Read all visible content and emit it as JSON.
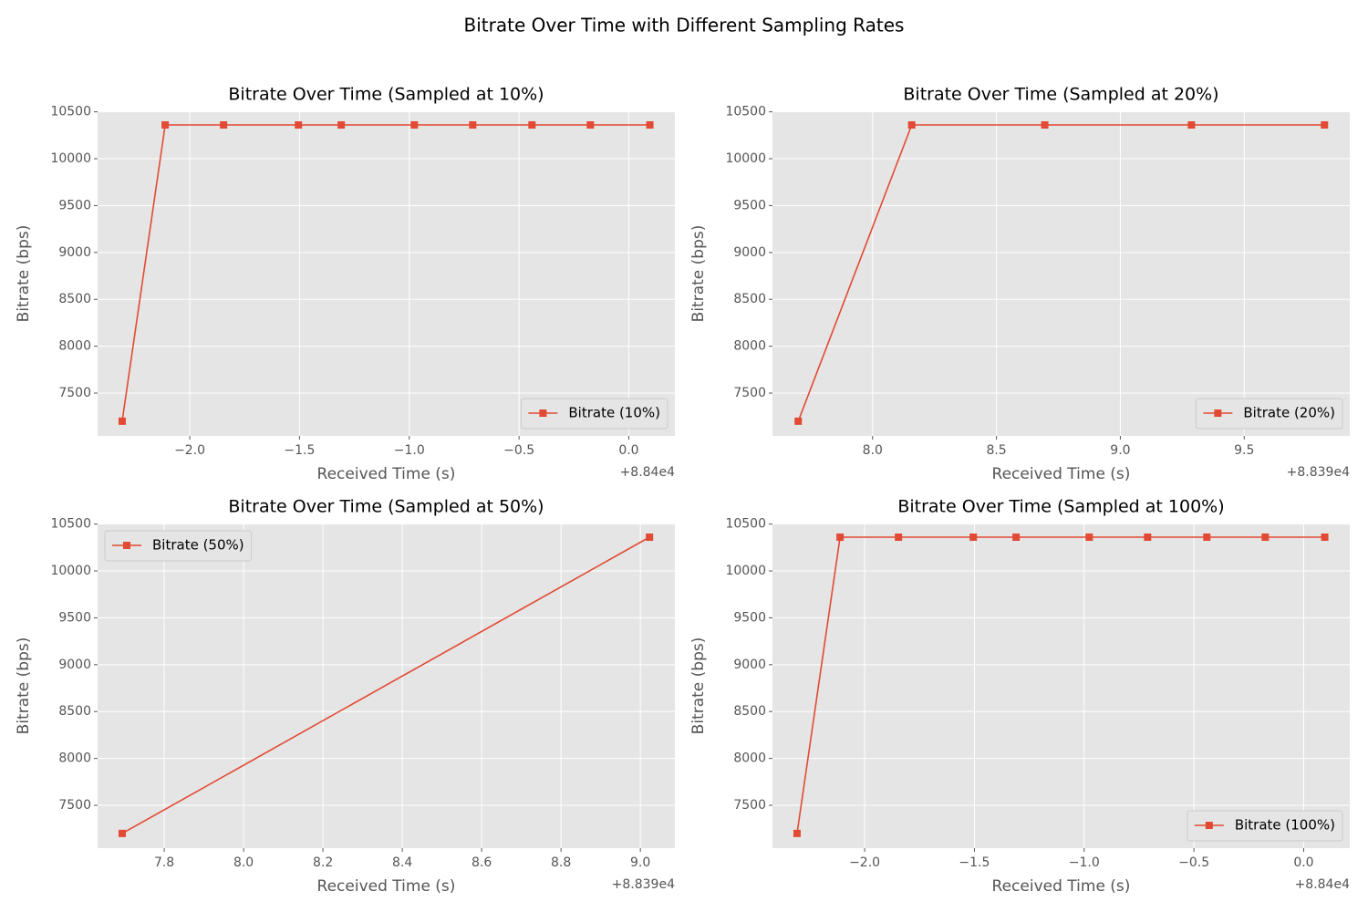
{
  "title": "Bitrate Over Time with Different Sampling Rates",
  "chart_data": [
    {
      "type": "line",
      "title": "Bitrate Over Time (Sampled at 10%)",
      "xlabel": "Received Time (s)",
      "ylabel": "Bitrate (bps)",
      "x_offset_label": "+8.84e4",
      "x": [
        -2.308,
        -2.112,
        -1.846,
        -1.505,
        -1.31,
        -0.977,
        -0.711,
        -0.441,
        -0.175,
        0.096
      ],
      "series": [
        {
          "name": "Bitrate (10%)",
          "color": "#E24A33",
          "values": [
            7200,
            10360,
            10360,
            10360,
            10360,
            10360,
            10360,
            10360,
            10360,
            10360
          ]
        }
      ],
      "xlim": [
        -2.42,
        0.21
      ],
      "ylim": [
        7043,
        10506
      ],
      "xticks": [
        {
          "value": -2.0,
          "label": "−2.0"
        },
        {
          "value": -1.5,
          "label": "−1.5"
        },
        {
          "value": -1.0,
          "label": "−1.0"
        },
        {
          "value": -0.5,
          "label": "−0.5"
        },
        {
          "value": 0,
          "label": "0.0"
        }
      ],
      "yticks": [
        7500,
        8000,
        8500,
        9000,
        9500,
        10000,
        10500
      ],
      "grid": true,
      "legend": "lower right",
      "marker": "square"
    },
    {
      "type": "line",
      "title": "Bitrate Over Time (Sampled at 20%)",
      "xlabel": "Received Time (s)",
      "ylabel": "Bitrate (bps)",
      "x_offset_label": "+8.839e4",
      "x": [
        7.7,
        8.158,
        8.695,
        9.287,
        9.824
      ],
      "series": [
        {
          "name": "Bitrate (20%)",
          "color": "#E24A33",
          "values": [
            7200,
            10360,
            10360,
            10360,
            10360
          ]
        }
      ],
      "xlim": [
        7.596,
        9.926
      ],
      "ylim": [
        7043,
        10506
      ],
      "xticks": [
        {
          "value": 8,
          "label": "8.0"
        },
        8.5,
        {
          "value": 9,
          "label": "9.0"
        },
        9.5
      ],
      "yticks": [
        7500,
        8000,
        8500,
        9000,
        9500,
        10000,
        10500
      ],
      "grid": true,
      "legend": "lower right",
      "marker": "square"
    },
    {
      "type": "line",
      "title": "Bitrate Over Time (Sampled at 50%)",
      "xlabel": "Received Time (s)",
      "ylabel": "Bitrate (bps)",
      "x_offset_label": "+8.839e4",
      "x": [
        7.694,
        9.023
      ],
      "series": [
        {
          "name": "Bitrate (50%)",
          "color": "#E24A33",
          "values": [
            7200,
            10360
          ]
        }
      ],
      "xlim": [
        7.632,
        9.087
      ],
      "ylim": [
        7043,
        10506
      ],
      "xticks": [
        7.8,
        {
          "value": 8,
          "label": "8.0"
        },
        8.2,
        8.4,
        8.6,
        8.8,
        {
          "value": 9,
          "label": "9.0"
        }
      ],
      "yticks": [
        7500,
        8000,
        8500,
        9000,
        9500,
        10000,
        10500
      ],
      "grid": true,
      "legend": "upper left",
      "marker": "square"
    },
    {
      "type": "line",
      "title": "Bitrate Over Time (Sampled at 100%)",
      "xlabel": "Received Time (s)",
      "ylabel": "Bitrate (bps)",
      "x_offset_label": "+8.84e4",
      "x": [
        -2.308,
        -2.112,
        -1.846,
        -1.505,
        -1.31,
        -0.977,
        -0.711,
        -0.441,
        -0.175,
        0.096
      ],
      "series": [
        {
          "name": "Bitrate (100%)",
          "color": "#E24A33",
          "values": [
            7200,
            10360,
            10360,
            10360,
            10360,
            10360,
            10360,
            10360,
            10360,
            10360
          ]
        }
      ],
      "xlim": [
        -2.42,
        0.21
      ],
      "ylim": [
        7043,
        10506
      ],
      "xticks": [
        {
          "value": -2.0,
          "label": "−2.0"
        },
        {
          "value": -1.5,
          "label": "−1.5"
        },
        {
          "value": -1.0,
          "label": "−1.0"
        },
        {
          "value": -0.5,
          "label": "−0.5"
        },
        {
          "value": 0,
          "label": "0.0"
        }
      ],
      "yticks": [
        7500,
        8000,
        8500,
        9000,
        9500,
        10000,
        10500
      ],
      "grid": true,
      "legend": "lower right",
      "marker": "square"
    }
  ]
}
